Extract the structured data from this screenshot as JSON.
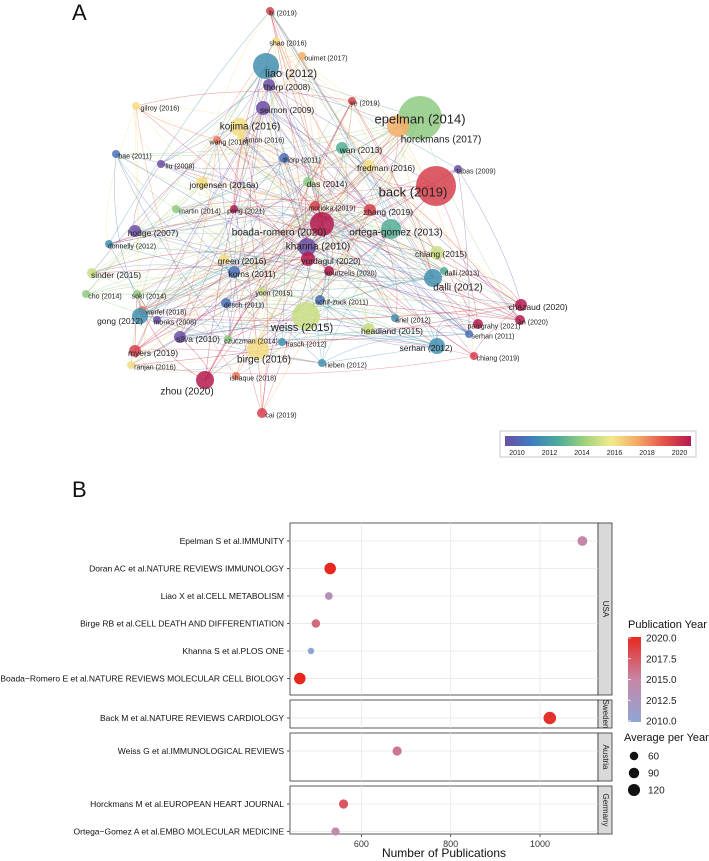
{
  "panel_a": {
    "letter": "A",
    "colorbar_ticks": [
      "2010",
      "2012",
      "2014",
      "2016",
      "2018",
      "2020"
    ],
    "colorbar_colors": [
      "#6b4ea5",
      "#3d7fbf",
      "#4dab9a",
      "#9fd27c",
      "#f3ea8c",
      "#f5a866",
      "#e4524a",
      "#b51a4f"
    ],
    "nodes": [
      {
        "label": "bi (2019)",
        "year": 2019,
        "size": 4,
        "small": true
      },
      {
        "label": "shao (2016)",
        "year": 2016,
        "size": 4,
        "small": true
      },
      {
        "label": "ouimet (2017)",
        "year": 2017,
        "size": 4,
        "small": true
      },
      {
        "label": "liao (2012)",
        "year": 2012,
        "size": 13,
        "small": false
      },
      {
        "label": "thorp (2008)",
        "year": 2008,
        "size": 6,
        "small": false
      },
      {
        "label": "gilroy (2016)",
        "year": 2016,
        "size": 4,
        "small": true
      },
      {
        "label": "seimon (2009)",
        "year": 2009,
        "size": 7,
        "small": false
      },
      {
        "label": "ye (2019)",
        "year": 2019,
        "size": 4,
        "small": true
      },
      {
        "label": "epelman (2014)",
        "year": 2014,
        "size": 22,
        "small": false
      },
      {
        "label": "horckmans (2017)",
        "year": 2017,
        "size": 11,
        "small": false
      },
      {
        "label": "kojima (2016)",
        "year": 2016,
        "size": 9,
        "small": false
      },
      {
        "label": "wang (2018)",
        "year": 2018,
        "size": 4,
        "small": true
      },
      {
        "label": "linton (2016)",
        "year": 2016,
        "size": 4,
        "small": true
      },
      {
        "label": "wan (2013)",
        "year": 2013,
        "size": 6,
        "small": false
      },
      {
        "label": "bae (2011)",
        "year": 2011,
        "size": 4,
        "small": true
      },
      {
        "label": "liu (2008)",
        "year": 2008,
        "size": 4,
        "small": true
      },
      {
        "label": "thorp (2011)",
        "year": 2011,
        "size": 5,
        "small": true
      },
      {
        "label": "tabas (2009)",
        "year": 2009,
        "size": 4,
        "small": true
      },
      {
        "label": "fredman (2016)",
        "year": 2016,
        "size": 6,
        "small": false
      },
      {
        "label": "jorgensen (2016a)",
        "year": 2016,
        "size": 6,
        "small": false
      },
      {
        "label": "das (2014)",
        "year": 2014,
        "size": 5,
        "small": false
      },
      {
        "label": "back (2019)",
        "year": 2019,
        "size": 20,
        "small": false
      },
      {
        "label": "martin (2014)",
        "year": 2014,
        "size": 4,
        "small": true
      },
      {
        "label": "peng (2021)",
        "year": 2021,
        "size": 4,
        "small": true
      },
      {
        "label": "morioka (2019)",
        "year": 2019,
        "size": 5,
        "small": true
      },
      {
        "label": "zhang (2019)",
        "year": 2019,
        "size": 6,
        "small": false
      },
      {
        "label": "hodge (2007)",
        "year": 2007,
        "size": 6,
        "small": false
      },
      {
        "label": "boada-romero (2020)",
        "year": 2020,
        "size": 12,
        "small": false
      },
      {
        "label": "ortega-gomez (2013)",
        "year": 2013,
        "size": 10,
        "small": false
      },
      {
        "label": "donnelly (2012)",
        "year": 2012,
        "size": 4,
        "small": true
      },
      {
        "label": "khanna (2010)",
        "year": 2010,
        "size": 9,
        "small": false
      },
      {
        "label": "chiang (2015)",
        "year": 2015,
        "size": 7,
        "small": false
      },
      {
        "label": "yurdagul (2020)",
        "year": 2020,
        "size": 7,
        "small": false
      },
      {
        "label": "green (2016)",
        "year": 2016,
        "size": 5,
        "small": false
      },
      {
        "label": "dalli (2013)",
        "year": 2013,
        "size": 4,
        "small": true
      },
      {
        "label": "sinder (2015)",
        "year": 2015,
        "size": 5,
        "small": false
      },
      {
        "label": "korns (2011)",
        "year": 2011,
        "size": 6,
        "small": false
      },
      {
        "label": "kourtzelis (2020)",
        "year": 2020,
        "size": 5,
        "small": true
      },
      {
        "label": "dalli (2012)",
        "year": 2012,
        "size": 9,
        "small": false
      },
      {
        "label": "cho (2014)",
        "year": 2014,
        "size": 4,
        "small": true
      },
      {
        "label": "soki (2014)",
        "year": 2014,
        "size": 4,
        "small": true
      },
      {
        "label": "yoon (2015)",
        "year": 2015,
        "size": 4,
        "small": true
      },
      {
        "label": "desch (2011)",
        "year": 2011,
        "size": 5,
        "small": true
      },
      {
        "label": "schif-zuck (2011)",
        "year": 2011,
        "size": 5,
        "small": true
      },
      {
        "label": "chazaud (2020)",
        "year": 2020,
        "size": 6,
        "small": false
      },
      {
        "label": "werfel (2018)",
        "year": 2018,
        "size": 4,
        "small": true
      },
      {
        "label": "gong (2012)",
        "year": 2012,
        "size": 8,
        "small": false
      },
      {
        "label": "monks (2008)",
        "year": 2008,
        "size": 4,
        "small": true
      },
      {
        "label": "weiss (2015)",
        "year": 2015,
        "size": 14,
        "small": false
      },
      {
        "label": "ariel (2012)",
        "year": 2012,
        "size": 4,
        "small": true
      },
      {
        "label": "headland (2015)",
        "year": 2015,
        "size": 6,
        "small": false
      },
      {
        "label": "panigrahy (2021)",
        "year": 2021,
        "size": 5,
        "small": true
      },
      {
        "label": "an (2020)",
        "year": 2020,
        "size": 5,
        "small": true
      },
      {
        "label": "serhan (2011)",
        "year": 2011,
        "size": 4,
        "small": true
      },
      {
        "label": "silva (2010)",
        "year": 2010,
        "size": 6,
        "small": false
      },
      {
        "label": "czuczman (2014)",
        "year": 2014,
        "size": 4,
        "small": true
      },
      {
        "label": "frasch (2012)",
        "year": 2012,
        "size": 4,
        "small": true
      },
      {
        "label": "myers (2019)",
        "year": 2019,
        "size": 6,
        "small": false
      },
      {
        "label": "birge (2016)",
        "year": 2016,
        "size": 11,
        "small": false
      },
      {
        "label": "serhan (2012)",
        "year": 2012,
        "size": 8,
        "small": false
      },
      {
        "label": "rieben (2012)",
        "year": 2012,
        "size": 4,
        "small": true
      },
      {
        "label": "ranjan (2016)",
        "year": 2016,
        "size": 4,
        "small": true
      },
      {
        "label": "ishaque (2018)",
        "year": 2018,
        "size": 4,
        "small": true
      },
      {
        "label": "chiang (2019)",
        "year": 2019,
        "size": 4,
        "small": true
      },
      {
        "label": "zhou (2020)",
        "year": 2020,
        "size": 9,
        "small": false
      },
      {
        "label": "cai (2019)",
        "year": 2019,
        "size": 5,
        "small": true
      }
    ]
  },
  "chart_data": [
    {
      "type": "network",
      "title": "A",
      "legend": {
        "type": "colorbar",
        "min": 2010,
        "max": 2020,
        "ticks": [
          2010,
          2012,
          2014,
          2016,
          2018,
          2020
        ]
      }
    },
    {
      "type": "scatter",
      "title": "B",
      "xlabel": "Number of Publications",
      "xlim": [
        440,
        1130
      ],
      "xticks": [
        600,
        800,
        1000
      ],
      "facet_by": "country",
      "facets": [
        {
          "country": "USA",
          "items": [
            {
              "document": "Epelman S et al.IMMUNITY",
              "publications": 1095,
              "year": 2014.8,
              "avg_per_year": 80
            },
            {
              "document": "Doran AC et al.NATURE REVIEWS IMMUNOLOGY",
              "publications": 530,
              "year": 2020.0,
              "avg_per_year": 110
            },
            {
              "document": "Liao X et al.CELL METABOLISM",
              "publications": 527,
              "year": 2013.5,
              "avg_per_year": 50
            },
            {
              "document": "Birge RB et al.CELL DEATH AND DIFFERENTIATION",
              "publications": 498,
              "year": 2016.5,
              "avg_per_year": 60
            },
            {
              "document": "Khanna S et al.PLOS ONE",
              "publications": 487,
              "year": 2010.2,
              "avg_per_year": 35
            },
            {
              "document": "Boada−Romero E et al.NATURE REVIEWS MOLECULAR CELL BIOLOGY",
              "publications": 462,
              "year": 2020.0,
              "avg_per_year": 110
            }
          ]
        },
        {
          "country": "Sweden",
          "items": [
            {
              "document": "Back M et al.NATURE REVIEWS CARDIOLOGY",
              "publications": 1022,
              "year": 2019.5,
              "avg_per_year": 130
            }
          ]
        },
        {
          "country": "Austria",
          "items": [
            {
              "document": "Weiss G et al.IMMUNOLOGICAL REVIEWS",
              "publications": 680,
              "year": 2015.8,
              "avg_per_year": 70
            }
          ]
        },
        {
          "country": "Germany",
          "items": [
            {
              "document": "Horckmans M et al.EUROPEAN HEART JOURNAL",
              "publications": 560,
              "year": 2017.5,
              "avg_per_year": 70
            },
            {
              "document": "Ortega−Gomez A et al.EMBO MOLECULAR MEDICINE",
              "publications": 542,
              "year": 2014.5,
              "avg_per_year": 55
            }
          ]
        }
      ],
      "color_legend": {
        "title": "Publication Year",
        "ticks": [
          "2020.0",
          "2017.5",
          "2015.0",
          "2012.5",
          "2010.0"
        ],
        "low_color": "#8fa6d6",
        "high_color": "#e8281e"
      },
      "size_legend": {
        "title": "Average per Year",
        "entries": [
          "60",
          "90",
          "120"
        ]
      }
    }
  ],
  "panel_b": {
    "letter": "B"
  }
}
